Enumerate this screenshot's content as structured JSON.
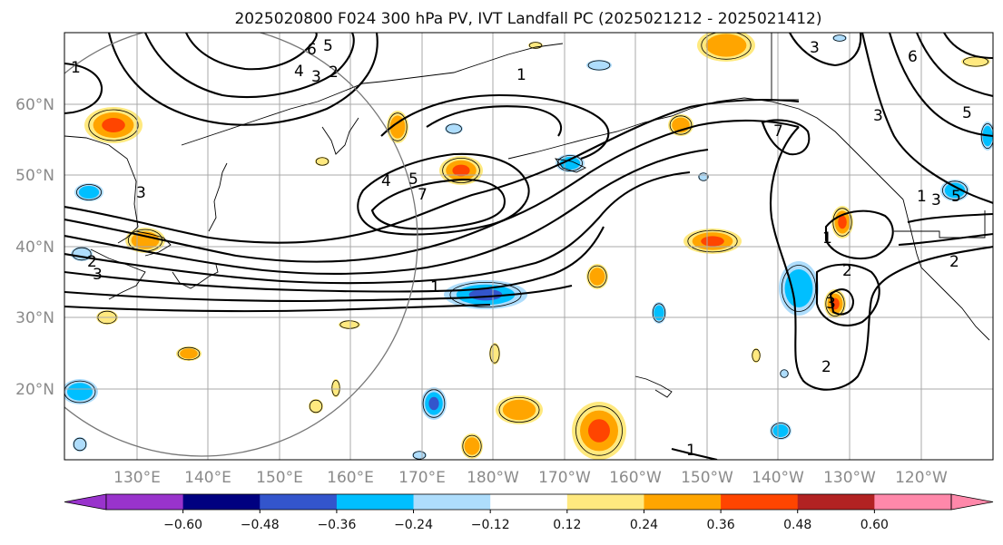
{
  "title": "2025020800 F024 300 hPa PV, IVT Landfall PC (2025021212 - 2025021412)",
  "lat_labels": [
    "60°N",
    "50°N",
    "40°N",
    "30°N",
    "20°N"
  ],
  "lon_labels": [
    "130°E",
    "140°E",
    "150°E",
    "160°E",
    "170°E",
    "180°W",
    "170°W",
    "160°W",
    "150°W",
    "140°W",
    "130°W",
    "120°W"
  ],
  "contour_labels": [
    "6",
    "5",
    "4",
    "3",
    "2",
    "1",
    "4",
    "5",
    "7",
    "1",
    "3",
    "3",
    "2",
    "1",
    "3",
    "7",
    "5",
    "6",
    "3",
    "1",
    "3",
    "5",
    "1",
    "2",
    "2",
    "3",
    "2",
    "1"
  ],
  "colorbar": {
    "ticks": [
      "−0.60",
      "−0.48",
      "−0.36",
      "−0.24",
      "−0.12",
      "0.12",
      "0.24",
      "0.36",
      "0.48",
      "0.60"
    ],
    "colors": [
      "#9933cc",
      "#000080",
      "#3355cc",
      "#00bfff",
      "#aeddfc",
      "#ffffff",
      "#ffe97f",
      "#ffa500",
      "#ff4500",
      "#b22222",
      "#ff88aa"
    ]
  },
  "anomaly_colors": {
    "pos_light": "#ffe97f",
    "pos_mid": "#ffa500",
    "pos_strong": "#ff4500",
    "neg_light": "#aeddfc",
    "neg_mid": "#00bfff",
    "neg_strong": "#3355cc"
  }
}
